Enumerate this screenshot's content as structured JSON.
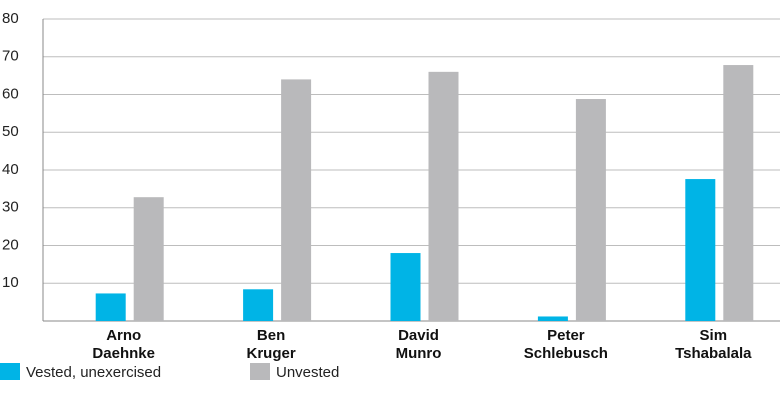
{
  "chart_data": {
    "type": "bar",
    "categories": [
      "Arno\nDaehnke",
      "Ben\nKruger",
      "David\nMunro",
      "Peter\nSchlebusch",
      "Sim\nTshabalala"
    ],
    "series": [
      {
        "name": "Vested, unexercised",
        "color": "#00b4e6",
        "values": [
          7.3,
          8.4,
          18,
          1.2,
          37.6
        ]
      },
      {
        "name": "Unvested",
        "color": "#b9b9bb",
        "values": [
          32.8,
          64,
          66,
          58.8,
          67.8
        ]
      }
    ],
    "ylim": [
      0,
      80
    ],
    "yticks": [
      10,
      20,
      30,
      40,
      50,
      60,
      70,
      80
    ],
    "grid": true
  }
}
